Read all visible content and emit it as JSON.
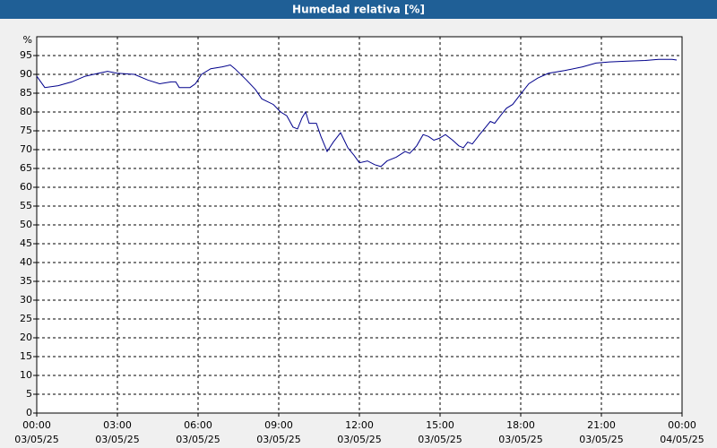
{
  "chart_data": {
    "type": "line",
    "title": "Humedad relativa [%]",
    "y_unit": "%",
    "x": [
      0,
      0.3,
      0.8,
      1.3,
      1.8,
      2.3,
      2.63,
      3.0,
      3.63,
      4.13,
      4.57,
      5.0,
      5.17,
      5.3,
      5.7,
      5.9,
      6.13,
      6.47,
      6.9,
      7.2,
      7.37,
      7.8,
      8.13,
      8.37,
      8.8,
      9.07,
      9.3,
      9.53,
      9.7,
      9.87,
      10.0,
      10.13,
      10.4,
      10.57,
      10.8,
      11.03,
      11.3,
      11.57,
      11.8,
      12.0,
      12.3,
      12.57,
      12.8,
      13.03,
      13.37,
      13.7,
      13.87,
      14.13,
      14.37,
      14.57,
      14.77,
      14.97,
      15.2,
      15.47,
      15.7,
      15.87,
      16.03,
      16.2,
      16.47,
      16.7,
      16.87,
      17.03,
      17.3,
      17.47,
      17.7,
      17.97,
      18.3,
      18.63,
      19.03,
      19.63,
      20.3,
      20.8,
      21.3,
      21.97,
      22.63,
      23.13,
      23.63,
      23.8
    ],
    "series": [
      {
        "name": "Humedad relativa",
        "color": "#00008b",
        "values": [
          89.5,
          86.5,
          87,
          88,
          89.5,
          90.3,
          90.8,
          90.3,
          90,
          88.5,
          87.5,
          88,
          88,
          86.5,
          86.5,
          87.5,
          90,
          91.5,
          92,
          92.5,
          91.5,
          88.5,
          86,
          83.5,
          82,
          80,
          79,
          76,
          75.5,
          78.5,
          80,
          77,
          77,
          73.5,
          69.5,
          72,
          74.5,
          70.5,
          68.5,
          66.5,
          67,
          66,
          65.5,
          67,
          68,
          69.5,
          69,
          71,
          74,
          73.5,
          72.5,
          73,
          74,
          72.5,
          71,
          70.5,
          72,
          71.5,
          74,
          76,
          77.5,
          77,
          79.5,
          81,
          82,
          84.5,
          87.5,
          89,
          90.3,
          91,
          92,
          93,
          93.3,
          93.5,
          93.7,
          94,
          94,
          93.8
        ]
      }
    ],
    "xlim": [
      0,
      24
    ],
    "xticks": [
      {
        "value": 0,
        "label": "00:00"
      },
      {
        "value": 3,
        "label": "03:00"
      },
      {
        "value": 6,
        "label": "06:00"
      },
      {
        "value": 9,
        "label": "09:00"
      },
      {
        "value": 12,
        "label": "12:00"
      },
      {
        "value": 15,
        "label": "15:00"
      },
      {
        "value": 18,
        "label": "18:00"
      },
      {
        "value": 21,
        "label": "21:00"
      },
      {
        "value": 24,
        "label": "00:00"
      }
    ],
    "xtick_dates": [
      "03/05/25",
      "03/05/25",
      "03/05/25",
      "03/05/25",
      "03/05/25",
      "03/05/25",
      "03/05/25",
      "03/05/25",
      "04/05/25"
    ],
    "ylim": [
      0,
      100
    ],
    "yticks": [
      0,
      5,
      10,
      15,
      20,
      25,
      30,
      35,
      40,
      45,
      50,
      55,
      60,
      65,
      70,
      75,
      80,
      85,
      90,
      95
    ],
    "grid": true
  }
}
